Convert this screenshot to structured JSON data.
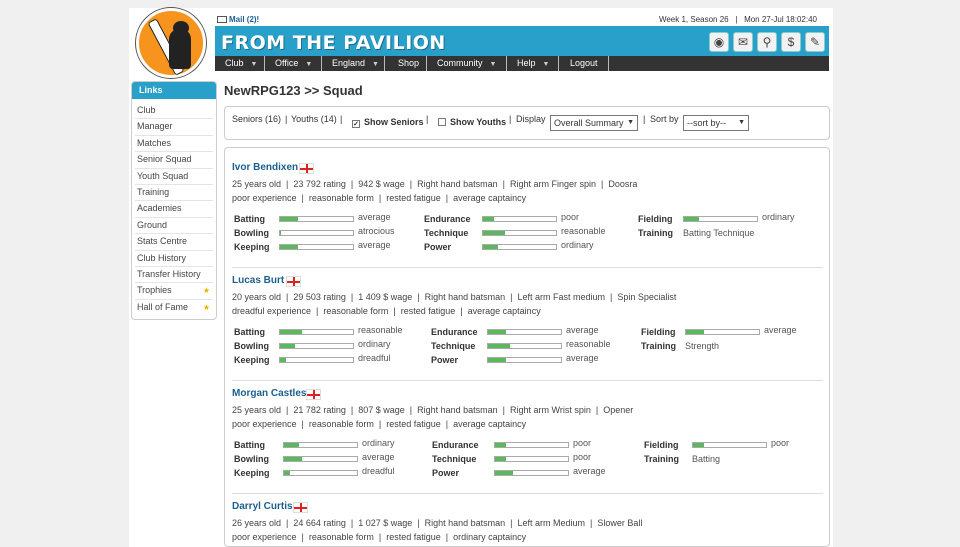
{
  "header": {
    "mail": "Mail (2)!",
    "season": "Week 1, Season 26",
    "separator": "|",
    "datetime": "Mon 27-Jul 18:02:40",
    "brand": "FROM THE PAVILION",
    "tool_icons": [
      "trophy-icon",
      "mail-icon",
      "search-icon",
      "dollar-icon",
      "paperclip-icon"
    ]
  },
  "nav": [
    "Club",
    "Office",
    "England",
    "Shop",
    "Community",
    "Help",
    "Logout"
  ],
  "sidebar": {
    "title": "Links",
    "items": [
      "Club",
      "Manager",
      "Matches",
      "Senior Squad",
      "Youth Squad",
      "Training",
      "Academies",
      "Ground",
      "Stats Centre",
      "Club History",
      "Transfer History",
      "Trophies",
      "Hall of Fame"
    ]
  },
  "page_title": "NewRPG123 >> Squad",
  "filter": {
    "seniors": "Seniors (16)",
    "bar": "|",
    "youths": "Youths (14)",
    "show_seniors": "Show Seniors",
    "show_youths": "Show Youths",
    "display_label": "Display",
    "display_value": "Overall Summary",
    "sort_label": "Sort by",
    "sort_value": "--sort by--"
  },
  "players": [
    {
      "name": "Ivor Bendixen",
      "line1": "25 years old  |  23 792 rating  |  942 $ wage  |  Right hand batsman  |  Right arm Finger spin  |  Doosra",
      "line2": "poor experience  |  reasonable form  |  rested fatigue  |  average captaincy",
      "batting": "average",
      "bowling": "atrocious",
      "keeping": "average",
      "endurance": "poor",
      "technique": "reasonable",
      "power": "ordinary",
      "fielding": "ordinary",
      "training": "Batting Technique",
      "levels": {
        "batting": 0.25,
        "bowling": 0.02,
        "keeping": 0.25,
        "endurance": 0.15,
        "technique": 0.3,
        "power": 0.2,
        "fielding": 0.2
      }
    },
    {
      "name": "Lucas Burt",
      "line1": "20 years old  |  29 503 rating  |  1 409 $ wage  |  Right hand batsman  |  Left arm Fast medium  |  Spin Specialist",
      "line2": "dreadful experience  |  reasonable form  |  rested fatigue  |  average captaincy",
      "batting": "reasonable",
      "bowling": "ordinary",
      "keeping": "dreadful",
      "endurance": "average",
      "technique": "reasonable",
      "power": "average",
      "fielding": "average",
      "training": "Strength",
      "levels": {
        "batting": 0.3,
        "bowling": 0.2,
        "keeping": 0.08,
        "endurance": 0.25,
        "technique": 0.3,
        "power": 0.25,
        "fielding": 0.25
      }
    },
    {
      "name": "Morgan Castles",
      "line1": "25 years old  |  21 782 rating  |  807 $ wage  |  Right hand batsman  |  Right arm Wrist spin  |  Opener",
      "line2": "poor experience  |  reasonable form  |  rested fatigue  |  average captaincy",
      "batting": "ordinary",
      "bowling": "average",
      "keeping": "dreadful",
      "endurance": "poor",
      "technique": "poor",
      "power": "average",
      "fielding": "poor",
      "training": "Batting",
      "levels": {
        "batting": 0.2,
        "bowling": 0.25,
        "keeping": 0.08,
        "endurance": 0.15,
        "technique": 0.15,
        "power": 0.25,
        "fielding": 0.15
      }
    },
    {
      "name": "Darryl Curtis",
      "line1": "26 years old  |  24 664 rating  |  1 027 $ wage  |  Right hand batsman  |  Left arm Medium  |  Slower Ball",
      "line2": "poor experience  |  reasonable form  |  rested fatigue  |  ordinary captaincy"
    }
  ]
}
